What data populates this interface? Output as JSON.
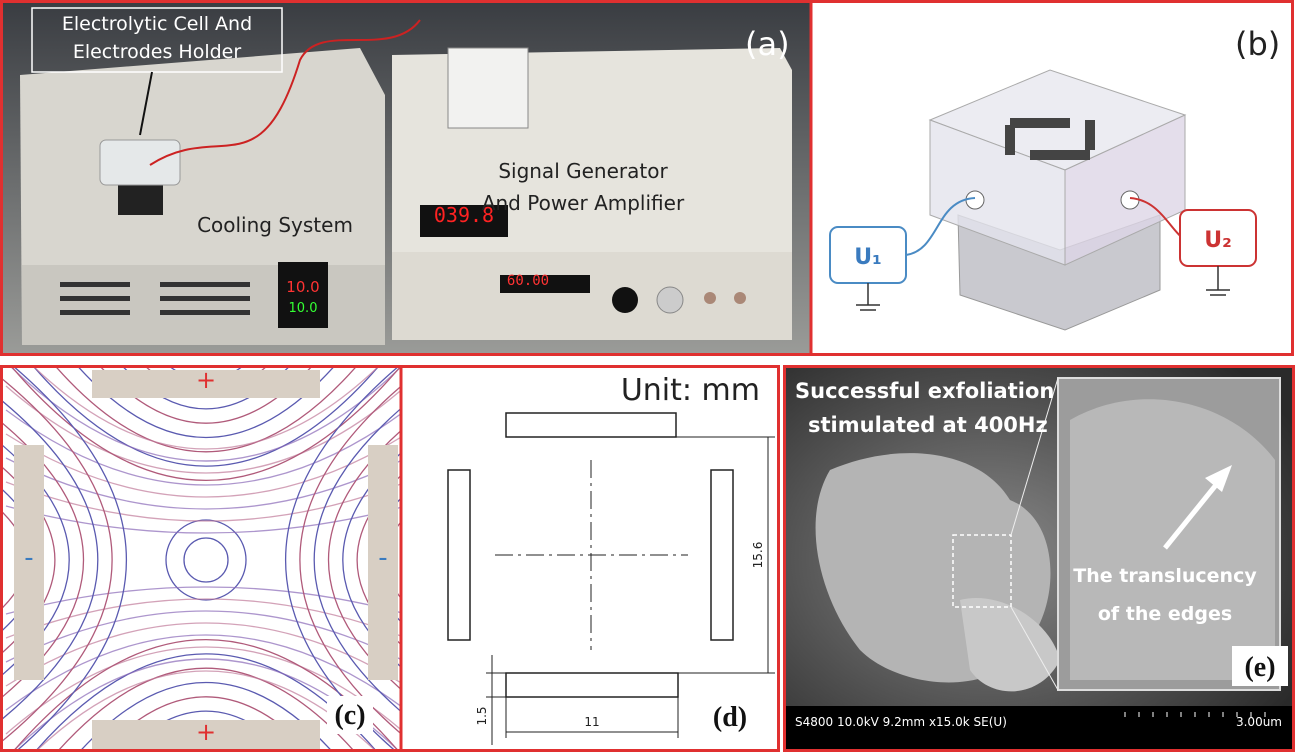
{
  "panel_a": {
    "label": "(a)",
    "cell_label": [
      "Electrolytic Cell And",
      "Electrodes Holder"
    ],
    "generator_label": [
      "Signal Generator",
      "And Power Amplifier"
    ],
    "cooling_label": "Cooling System",
    "meter_display": "039.8",
    "temp_display": [
      "10.0",
      "10.0"
    ],
    "freq_display": "60.00"
  },
  "panel_b": {
    "label": "(b)",
    "u1": "U₁",
    "u2": "U₂"
  },
  "panel_c": {
    "label": "(c)",
    "electrodes": [
      "+",
      "+",
      "-",
      "-"
    ]
  },
  "panel_d": {
    "label": "(d)",
    "unit": "Unit: mm",
    "dims": [
      "15.6",
      "1.5",
      "11"
    ]
  },
  "panel_e": {
    "label": "(e)",
    "title": [
      "Successful exfoliation",
      "stimulated at 400Hz"
    ],
    "callout": [
      "The translucency",
      "of the edges"
    ],
    "info": "S4800 10.0kV 9.2mm x15.0k SE(U)",
    "scale": "3.00um"
  }
}
